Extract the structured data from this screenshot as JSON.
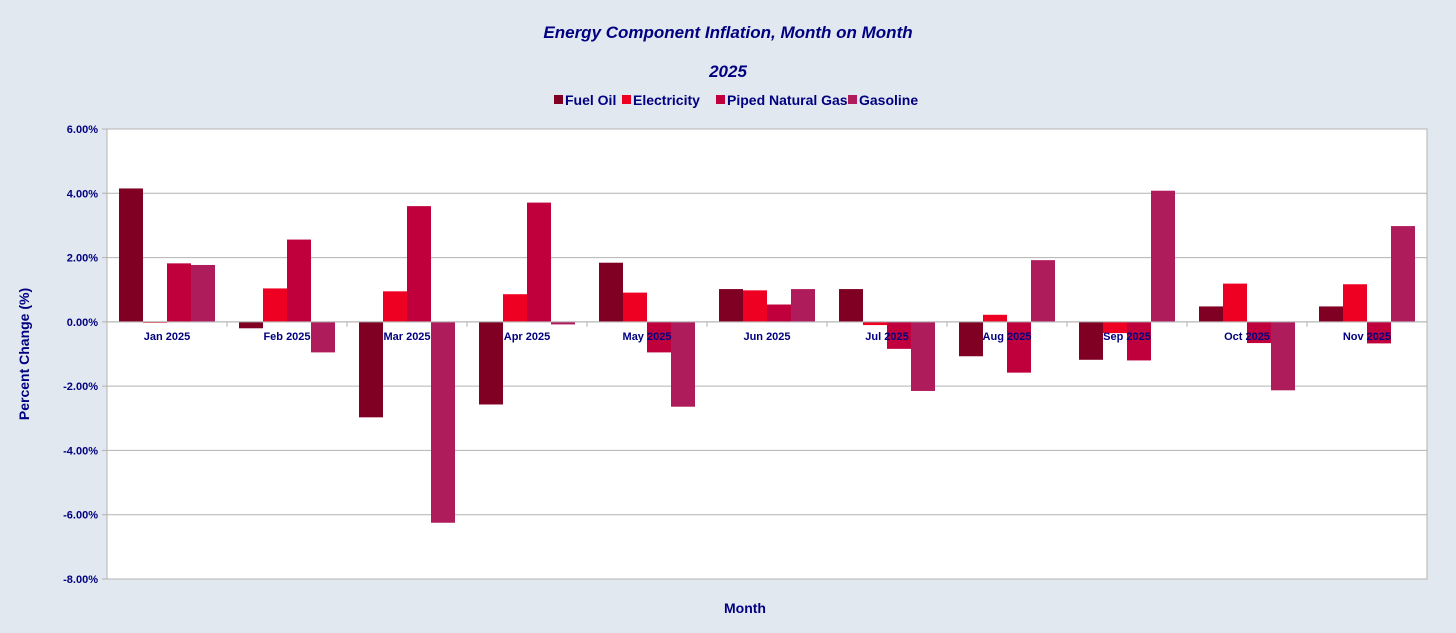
{
  "chart_data": {
    "type": "bar",
    "title": "Energy Component Inflation, Month on Month",
    "subtitle": "2025",
    "xlabel": "Month",
    "ylabel": "Percent Change (%)",
    "ylim": [
      -8,
      6
    ],
    "ytick_step": 2,
    "ytick_labels": [
      "6.00%",
      "4.00%",
      "2.00%",
      "0.00%",
      "-2.00%",
      "-4.00%",
      "-6.00%",
      "-8.00%"
    ],
    "grid": true,
    "legend_position": "top-center",
    "categories": [
      "Jan 2025",
      "Feb 2025",
      "Mar 2025",
      "Apr 2025",
      "May 2025",
      "Jun 2025",
      "Jul 2025",
      "Aug 2025",
      "Sep 2025",
      "Oct 2025",
      "Nov 2025"
    ],
    "series": [
      {
        "name": "Fuel Oil",
        "color": "#7f0022",
        "values": [
          4.15,
          -0.2,
          -2.97,
          -2.57,
          1.84,
          1.02,
          1.02,
          -1.07,
          -1.18,
          0.48,
          0.48
        ]
      },
      {
        "name": "Electricity",
        "color": "#ee0022",
        "values": [
          -0.03,
          1.04,
          0.95,
          0.86,
          0.91,
          0.98,
          -0.1,
          0.22,
          -0.35,
          1.19,
          1.17
        ]
      },
      {
        "name": "Piped Natural Gas",
        "color": "#c0003d",
        "values": [
          1.82,
          2.56,
          3.6,
          3.71,
          -0.95,
          0.54,
          -0.84,
          -1.58,
          -1.2,
          -0.66,
          -0.67
        ]
      },
      {
        "name": "Gasoline",
        "color": "#ae1c5c",
        "values": [
          1.77,
          -0.95,
          -6.25,
          -0.08,
          -2.64,
          1.02,
          -2.15,
          1.92,
          4.08,
          -2.13,
          2.98
        ]
      }
    ]
  },
  "colors": {
    "background": "#e1e8f0",
    "plot_background": "#ffffff",
    "text": "#000080",
    "grid": "#b3b3b3"
  }
}
